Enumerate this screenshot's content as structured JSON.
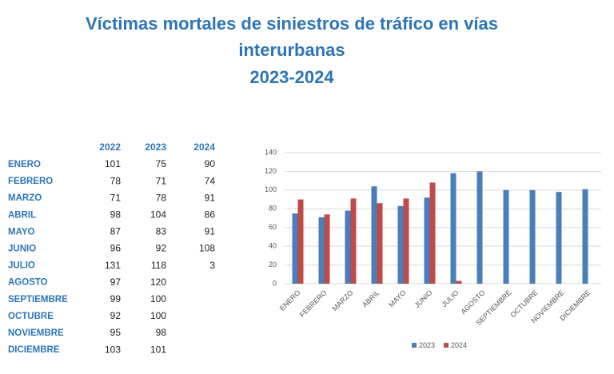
{
  "header": {
    "title_lines": [
      "Víctimas mortales de siniestros de tráfico en vías",
      "interurbanas",
      "2023-2024"
    ]
  },
  "table": {
    "columns": [
      "2022",
      "2023",
      "2024"
    ],
    "rows": [
      [
        "ENERO",
        101,
        75,
        90
      ],
      [
        "FEBRERO",
        78,
        71,
        74
      ],
      [
        "MARZO",
        71,
        78,
        91
      ],
      [
        "ABRIL",
        98,
        104,
        86
      ],
      [
        "MAYO",
        87,
        83,
        91
      ],
      [
        "JUNIO",
        96,
        92,
        108
      ],
      [
        "JULIO",
        131,
        118,
        3
      ],
      [
        "AGOSTO",
        97,
        120,
        null
      ],
      [
        "SEPTIEMBRE",
        99,
        100,
        null
      ],
      [
        "OCTUBRE",
        92,
        100,
        null
      ],
      [
        "NOVIEMBRE",
        95,
        98,
        null
      ],
      [
        "DICIEMBRE",
        103,
        101,
        null
      ]
    ]
  },
  "chart_data": {
    "type": "bar",
    "categories": [
      "ENERO",
      "FEBRERO",
      "MARZO",
      "ABRIL",
      "MAYO",
      "JUNIO",
      "JULIO",
      "AGOSTO",
      "SEPTIEMBRE",
      "OCTUBRE",
      "NOVIEMBRE",
      "DICIEMBRE"
    ],
    "series": [
      {
        "name": "2023",
        "color": "#4a7ebb",
        "values": [
          75,
          71,
          78,
          104,
          83,
          92,
          118,
          120,
          100,
          100,
          98,
          101
        ]
      },
      {
        "name": "2024",
        "color": "#be4b48",
        "values": [
          90,
          74,
          91,
          86,
          91,
          108,
          3,
          null,
          null,
          null,
          null,
          null
        ]
      }
    ],
    "ylim": [
      0,
      140
    ],
    "yticks": [
      0,
      20,
      40,
      60,
      80,
      100,
      120,
      140
    ],
    "grid": true,
    "legend": "bottom"
  }
}
